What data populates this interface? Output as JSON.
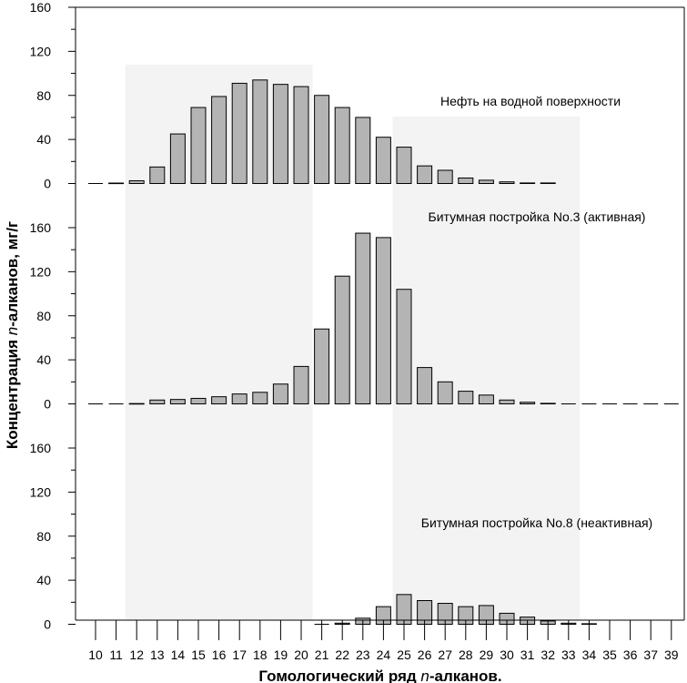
{
  "chart_data": {
    "type": "bar",
    "xlabel_parts": [
      "Гомологический ряд ",
      "n",
      "-алканов."
    ],
    "ylabel_parts": [
      "Концентрация ",
      "n",
      "-алканов, мг/г"
    ],
    "categories": [
      "10",
      "11",
      "12",
      "13",
      "14",
      "15",
      "16",
      "17",
      "18",
      "19",
      "20",
      "21",
      "22",
      "23",
      "24",
      "25",
      "26",
      "27",
      "28",
      "29",
      "30",
      "31",
      "32",
      "33",
      "34",
      "35",
      "36",
      "37",
      "39"
    ],
    "y_ticks": [
      0,
      40,
      80,
      120,
      160
    ],
    "ylim": [
      0,
      160
    ],
    "highlight_bands": [
      {
        "from": "12",
        "to": "20"
      },
      {
        "from": "25",
        "to": "33"
      }
    ],
    "series": [
      {
        "name": "Нефть на водной поверхности",
        "values": [
          0,
          0.4,
          2.5,
          15,
          45,
          69,
          79,
          91,
          94,
          90,
          88,
          80,
          69,
          60,
          42,
          33,
          16,
          12,
          5,
          3,
          1.5,
          0.5,
          0.5,
          null,
          null,
          null,
          null,
          null,
          null
        ]
      },
      {
        "name": "Битумная постройка No.3 (активная)",
        "values": [
          0,
          0,
          0.3,
          3.5,
          4,
          5,
          6.5,
          9,
          10.5,
          18,
          34,
          68,
          116,
          155,
          151,
          104,
          33,
          20,
          11.5,
          8,
          3.5,
          1.5,
          0.5,
          0,
          0,
          0,
          0,
          0,
          0
        ]
      },
      {
        "name": "Битумная постройка No.8 (неактивная)",
        "values": [
          null,
          null,
          null,
          null,
          null,
          null,
          null,
          null,
          null,
          null,
          null,
          0,
          1,
          5.5,
          16,
          27,
          21.5,
          19,
          16,
          17,
          10,
          6.5,
          3,
          1,
          0.5,
          null,
          null,
          null,
          null
        ]
      }
    ],
    "colors": {
      "bar_fill": "#b4b4b4",
      "bar_stroke": "#000000",
      "band_fill": "#f3f3f3"
    },
    "grid": false
  }
}
